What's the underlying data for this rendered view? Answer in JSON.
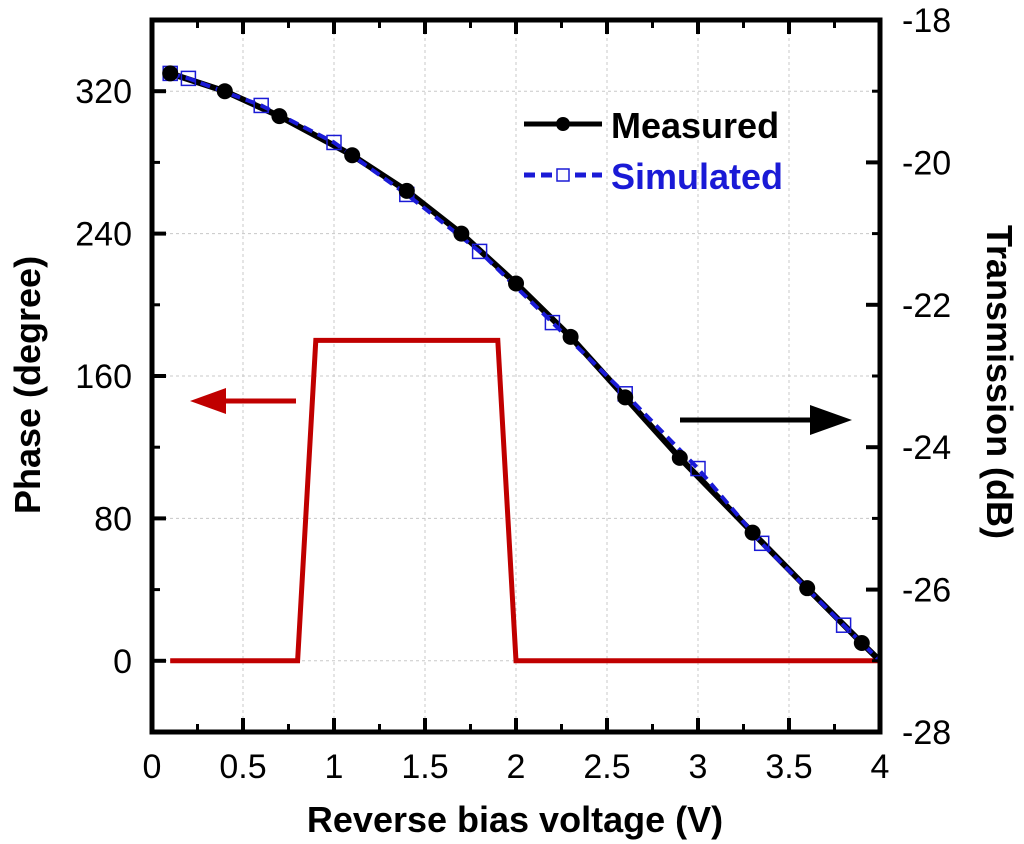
{
  "chart_data": {
    "type": "line",
    "xlabel": "Reverse bias voltage (V)",
    "ylabel_left": "Phase (degree)",
    "ylabel_right": "Transmission (dB)",
    "xlim": [
      0,
      4
    ],
    "ylim_left": [
      -40,
      360
    ],
    "ylim_right": [
      -28,
      -18
    ],
    "x_ticks": [
      0,
      0.5,
      1,
      1.5,
      2,
      2.5,
      3,
      3.5,
      4
    ],
    "x_tick_labels": [
      "0",
      "0.5",
      "1",
      "1.5",
      "2",
      "2.5",
      "3",
      "3.5",
      "4"
    ],
    "y_ticks_left": [
      0,
      80,
      160,
      240,
      320
    ],
    "y_tick_labels_left": [
      "0",
      "80",
      "160",
      "240",
      "320"
    ],
    "y_ticks_right": [
      -28,
      -26,
      -24,
      -22,
      -20,
      -18
    ],
    "y_tick_labels_right": [
      "-28",
      "-26",
      "-24",
      "-22",
      "-20",
      "-18"
    ],
    "grid": true,
    "legend_position": "top-right",
    "series": [
      {
        "name": "Measured",
        "axis": "right",
        "color": "#000000",
        "marker": "filled-circle",
        "line": "solid",
        "x": [
          0.1,
          0.4,
          0.7,
          1.1,
          1.4,
          1.7,
          2.0,
          2.3,
          2.6,
          2.9,
          3.3,
          3.6,
          3.9,
          4.0
        ],
        "y": [
          -18.75,
          -19.0,
          -19.35,
          -19.9,
          -20.4,
          -21.0,
          -21.7,
          -22.45,
          -23.3,
          -24.15,
          -25.2,
          -25.98,
          -26.75,
          -27.0
        ]
      },
      {
        "name": "Simulated",
        "axis": "right",
        "color": "#1a1ad6",
        "marker": "open-square",
        "line": "dashed",
        "x": [
          0.1,
          0.2,
          0.6,
          1.0,
          1.4,
          1.8,
          2.2,
          2.6,
          3.0,
          3.35,
          3.8,
          4.0
        ],
        "y": [
          -18.75,
          -18.82,
          -19.2,
          -19.72,
          -20.45,
          -21.25,
          -22.25,
          -23.25,
          -24.3,
          -25.35,
          -26.5,
          -27.0
        ]
      },
      {
        "name": "Phase",
        "axis": "left",
        "color": "#c00000",
        "marker": "none",
        "line": "solid",
        "x": [
          0.1,
          0.8,
          0.9,
          1.9,
          2.0,
          4.0
        ],
        "y": [
          0,
          0,
          180,
          180,
          0,
          0
        ]
      }
    ],
    "annotations": [
      {
        "type": "arrow",
        "direction": "left",
        "color": "#c00000",
        "meaning": "Phase uses left axis"
      },
      {
        "type": "arrow",
        "direction": "right",
        "color": "#000000",
        "meaning": "Transmission uses right axis"
      }
    ]
  }
}
